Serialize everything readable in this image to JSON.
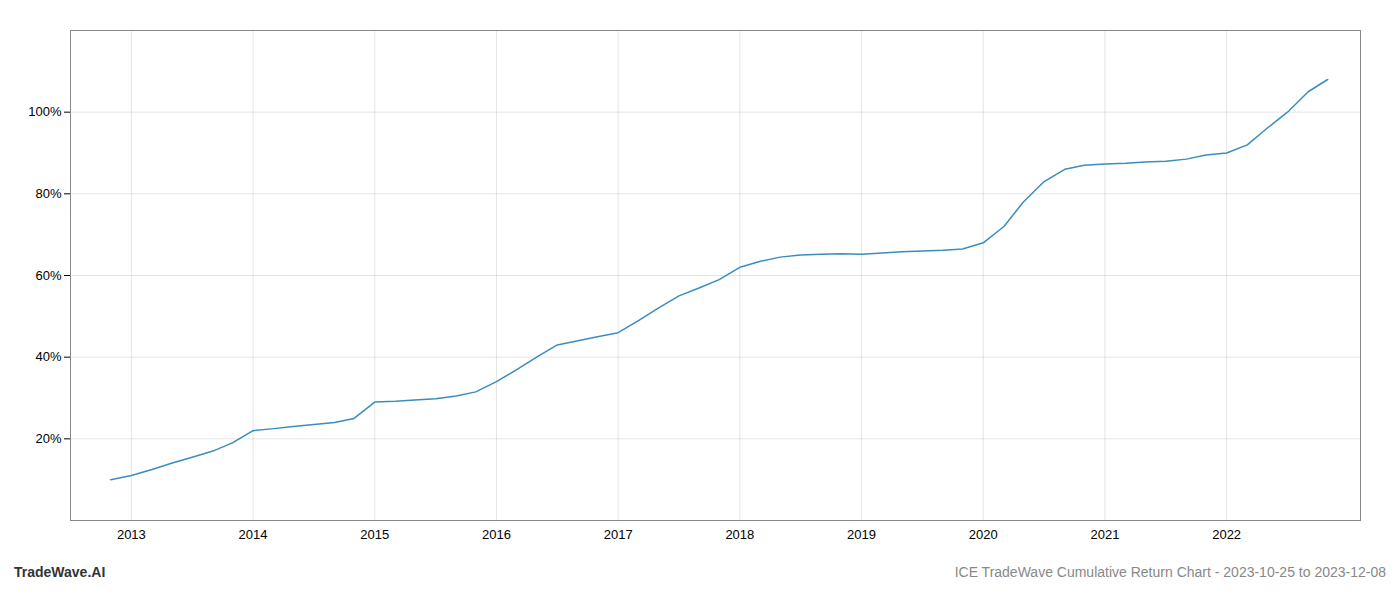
{
  "chart_data": {
    "type": "line",
    "x": [
      2012.83,
      2013.0,
      2013.17,
      2013.33,
      2013.5,
      2013.67,
      2013.83,
      2014.0,
      2014.17,
      2014.33,
      2014.5,
      2014.67,
      2014.83,
      2015.0,
      2015.17,
      2015.33,
      2015.5,
      2015.67,
      2015.83,
      2016.0,
      2016.17,
      2016.33,
      2016.5,
      2016.67,
      2016.83,
      2017.0,
      2017.17,
      2017.33,
      2017.5,
      2017.67,
      2017.83,
      2018.0,
      2018.17,
      2018.33,
      2018.5,
      2018.67,
      2018.83,
      2019.0,
      2019.17,
      2019.33,
      2019.5,
      2019.67,
      2019.83,
      2020.0,
      2020.17,
      2020.33,
      2020.5,
      2020.67,
      2020.83,
      2021.0,
      2021.17,
      2021.33,
      2021.5,
      2021.67,
      2021.83,
      2022.0,
      2022.17,
      2022.33,
      2022.5,
      2022.67,
      2022.83
    ],
    "values": [
      10,
      11,
      12.5,
      14,
      15.5,
      17,
      19,
      22,
      22.5,
      23,
      23.5,
      24,
      25,
      29,
      29.2,
      29.5,
      29.8,
      30.5,
      31.5,
      34,
      37,
      40,
      43,
      44,
      45,
      46,
      49,
      52,
      55,
      57,
      59,
      62,
      63.5,
      64.5,
      65,
      65.2,
      65.3,
      65.2,
      65.5,
      65.8,
      66,
      66.2,
      66.5,
      68,
      72,
      78,
      83,
      86,
      87,
      87.3,
      87.5,
      87.8,
      88,
      88.5,
      89.5,
      90,
      92,
      96,
      100,
      105,
      108
    ],
    "color": "#3a8dbf",
    "xlim": [
      2012.5,
      2023.1
    ],
    "ylim": [
      0,
      120
    ],
    "xticks": [
      2013,
      2014,
      2015,
      2016,
      2017,
      2018,
      2019,
      2020,
      2021,
      2022
    ],
    "yticks": [
      {
        "value": 20,
        "label": "20%"
      },
      {
        "value": 40,
        "label": "40%"
      },
      {
        "value": 60,
        "label": "60%"
      },
      {
        "value": 80,
        "label": "80%"
      },
      {
        "value": 100,
        "label": "100%"
      }
    ],
    "grid": true,
    "annotations": [
      "TradeWave.AI",
      "ICE TradeWave Cumulative Return Chart - 2023-10-25 to 2023-12-08"
    ]
  }
}
